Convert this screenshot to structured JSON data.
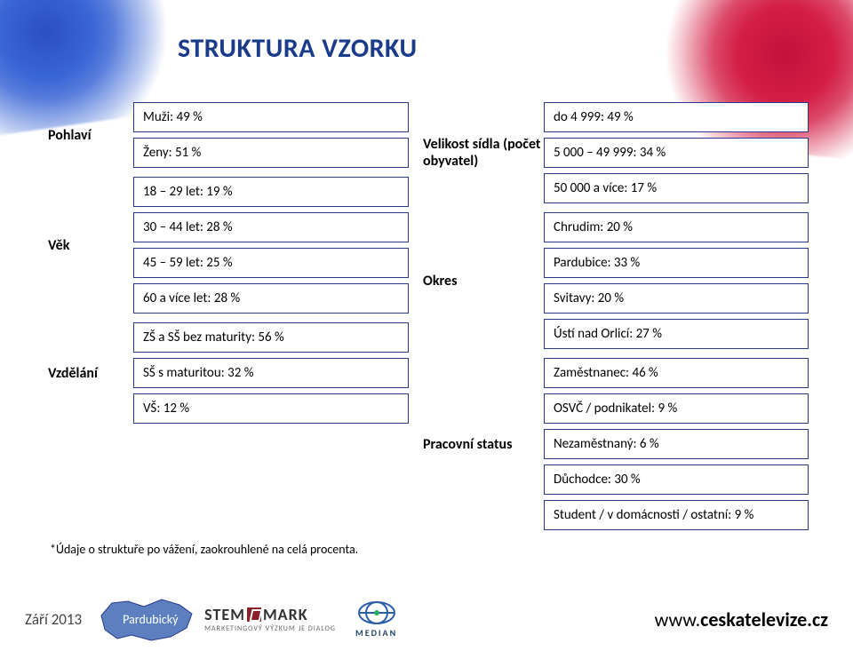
{
  "title": "STRUKTURA VZORKU",
  "left_blocks": [
    {
      "label": "Pohlaví",
      "cells": [
        "Muži: 49 %",
        "Ženy: 51 %"
      ]
    },
    {
      "label": "Věk",
      "cells": [
        "18 – 29 let: 19 %",
        "30 – 44 let: 28 %",
        "45 – 59 let: 25 %",
        "60 a více let: 28 %"
      ]
    },
    {
      "label": "Vzdělání",
      "cells": [
        "ZŠ a SŠ bez maturity: 56 %",
        "SŠ s maturitou: 32 %",
        "VŠ: 12 %"
      ]
    }
  ],
  "right_blocks": [
    {
      "label": "Velikost sídla (počet obyvatel)",
      "cells": [
        "do 4 999: 49 %",
        "5 000 – 49 999: 34 %",
        "50 000 a více: 17 %"
      ]
    },
    {
      "label": "Okres",
      "cells": [
        "Chrudim: 20 %",
        "Pardubice: 33 %",
        "Svitavy: 20 %",
        "Ústí nad Orlicí: 27 %"
      ]
    },
    {
      "label": "Pracovní status",
      "cells": [
        "Zaměstnanec: 46 %",
        "OSVČ / podnikatel: 9 %",
        "Nezaměstnaný: 6 %",
        "Důchodce: 30 %",
        "Student / v domácnosti / ostatní: 9 %"
      ]
    }
  ],
  "footnote": "*Údaje o struktuře po vážení, zaokrouhlené na celá procenta.",
  "footer": {
    "date": "Září 2013",
    "region": "Pardubický",
    "stemmark": {
      "name": "STEM MARK",
      "sub": "MARKETINGOVÝ VÝZKUM JE DIALOG"
    },
    "median": "MEDIAN",
    "url_www": "www.",
    "url_domain": "ceskatelevize.cz"
  },
  "colors": {
    "title": "#1a3a8a",
    "cell_border": "#2a3a8a",
    "region_fill": "#5b7fbf",
    "region_stroke": "#2a3a8a"
  }
}
